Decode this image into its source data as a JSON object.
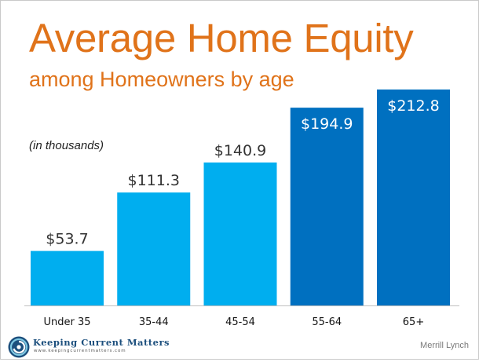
{
  "title": "Average Home Equity",
  "subtitle": "among Homeowners by age",
  "units_note": "(in thousands)",
  "source": "Merrill Lynch",
  "logo": {
    "name": "Keeping Current Matters",
    "url": "www.keepingcurrentmatters.com"
  },
  "colors": {
    "title": "#e0731a",
    "bar_light": "#00aeef",
    "bar_dark": "#0070c0"
  },
  "chart_data": {
    "type": "bar",
    "categories": [
      "Under 35",
      "35-44",
      "45-54",
      "55-64",
      "65+"
    ],
    "values": [
      53.7,
      111.3,
      140.9,
      194.9,
      212.8
    ],
    "value_labels": [
      "$53.7",
      "$111.3",
      "$140.9",
      "$194.9",
      "$212.8"
    ],
    "bar_colors": [
      "#00aeef",
      "#00aeef",
      "#00aeef",
      "#0070c0",
      "#0070c0"
    ],
    "label_inside": [
      false,
      false,
      false,
      true,
      true
    ],
    "xlabel": "",
    "ylabel": "",
    "ylim": [
      0,
      212.8
    ],
    "grid": false,
    "legend": "none"
  }
}
